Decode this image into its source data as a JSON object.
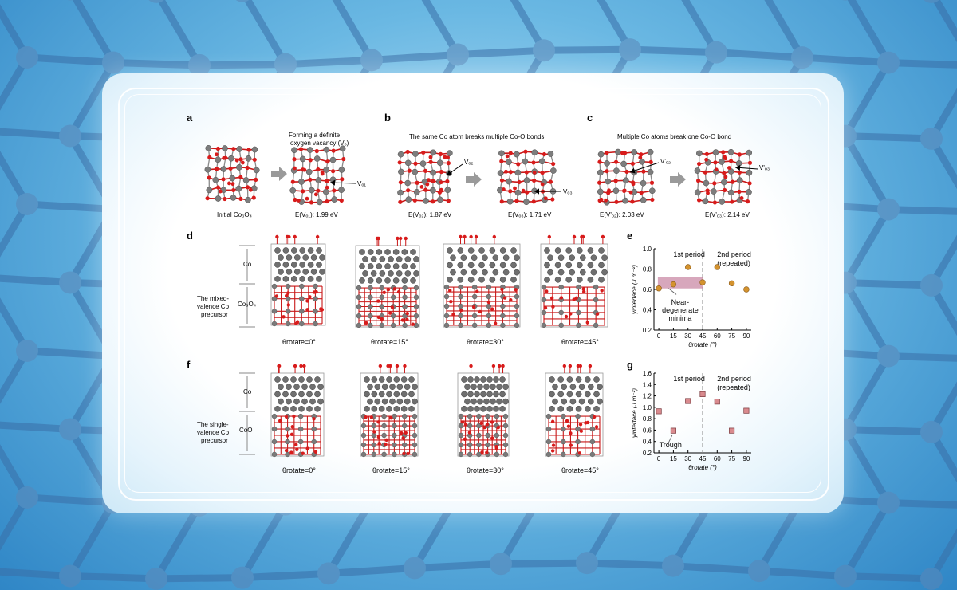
{
  "panels": {
    "a": {
      "letter": "a",
      "initial": "Initial Co₃O₄",
      "arrow_caption": "Forming a definite",
      "arrow_caption2": "oxygen vacancy (Vₒ)",
      "vac": "Vₒ₁",
      "energy": "E(Vₒ₁): 1.99 eV"
    },
    "b": {
      "letter": "b",
      "title": "The same Co atom breaks multiple Co-O bonds",
      "vac1": "Vₒ₂",
      "vac2": "Vₒ₃",
      "energy1": "E(Vₒ₂): 1.87 eV",
      "energy2": "E(Vₒ₃): 1.71 eV"
    },
    "c": {
      "letter": "c",
      "title": "Multiple Co atoms break one Co-O bond",
      "vac1": "V'ₒ₂",
      "vac2": "V'ₒ₃",
      "energy1": "E(V'ₒ₂): 2.03 eV",
      "energy2": "E(V'ₒ₃): 2.14 eV"
    },
    "d": {
      "letter": "d",
      "layer_top": "Co",
      "layer_bottom": "Co₃O₄",
      "desc": [
        "The mixed-",
        "valence Co",
        "precursor"
      ],
      "angles": [
        "θrotate=0°",
        "θrotate=15°",
        "θrotate=30°",
        "θrotate=45°"
      ]
    },
    "f": {
      "letter": "f",
      "layer_top": "Co",
      "layer_bottom": "CoO",
      "desc": [
        "The single-",
        "valence Co",
        "precursor"
      ],
      "angles": [
        "θrotate=0°",
        "θrotate=15°",
        "θrotate=30°",
        "θrotate=45°"
      ]
    }
  },
  "colors": {
    "co_atom": "#7d7d7d",
    "o_atom": "#d81b1b",
    "bond": "#c81818",
    "arrow": "#9a9a9a",
    "marker_e": "#d4932e",
    "marker_g": "#d98a8e",
    "band": "#c98aa6"
  },
  "chart_data": [
    {
      "panel": "e",
      "type": "scatter",
      "xlabel": "θrotate (°)",
      "ylabel": "γinterface (J m⁻²)",
      "x_ticks": [
        0,
        15,
        30,
        45,
        60,
        75,
        90
      ],
      "y_ticks": [
        0.2,
        0.4,
        0.6,
        0.8,
        1.0
      ],
      "xlim": [
        -5,
        95
      ],
      "ylim": [
        0.2,
        1.0
      ],
      "series": [
        {
          "x": [
            0,
            15,
            30,
            45,
            60,
            75,
            90
          ],
          "values": [
            0.61,
            0.65,
            0.82,
            0.67,
            0.82,
            0.66,
            0.6
          ]
        }
      ],
      "annotations": {
        "period1": "1st period",
        "period2": "2nd period",
        "period2b": "(repeated)",
        "note": [
          "Near-",
          "degenerate",
          "minima"
        ]
      },
      "band": [
        0.61,
        0.72
      ],
      "divider_x": 45
    },
    {
      "panel": "g",
      "type": "scatter",
      "xlabel": "θrotate (°)",
      "ylabel": "γinterface (J m⁻²)",
      "x_ticks": [
        0,
        15,
        30,
        45,
        60,
        75,
        90
      ],
      "y_ticks": [
        0.2,
        0.4,
        0.6,
        0.8,
        1.0,
        1.2,
        1.4,
        1.6
      ],
      "xlim": [
        -5,
        95
      ],
      "ylim": [
        0.2,
        1.6
      ],
      "series": [
        {
          "x": [
            0,
            15,
            30,
            45,
            60,
            75,
            90
          ],
          "values": [
            0.93,
            0.59,
            1.11,
            1.23,
            1.1,
            0.59,
            0.94
          ]
        }
      ],
      "annotations": {
        "period1": "1st period",
        "period2": "2nd period",
        "period2b": "(repeated)",
        "note": [
          "Trough"
        ]
      },
      "divider_x": 45
    }
  ]
}
